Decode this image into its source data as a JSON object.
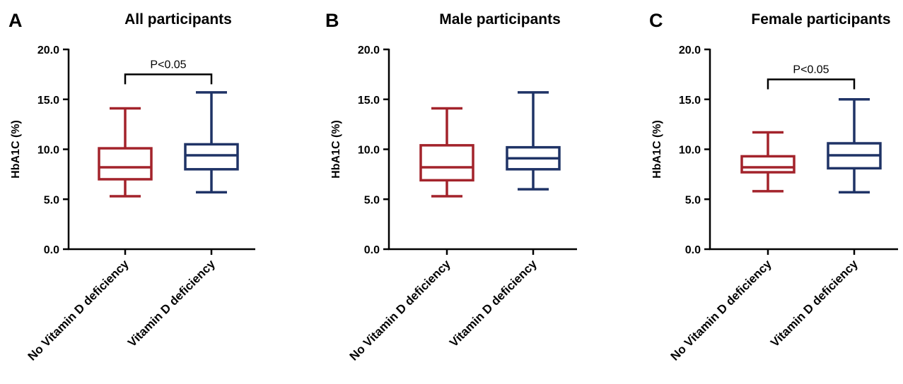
{
  "chart_data": [
    {
      "panel": "A",
      "type": "boxplot",
      "title": "All participants",
      "ylabel": "HbA1C (%)",
      "xlabel": "",
      "ylim": [
        0,
        20
      ],
      "yticks": [
        "0.0",
        "5.0",
        "10.0",
        "15.0",
        "20.0"
      ],
      "categories": [
        "No Vitamin D deficiency",
        "Vitamin D deficiency"
      ],
      "boxes": [
        {
          "min": 5.3,
          "q1": 7.0,
          "median": 8.2,
          "q3": 10.1,
          "max": 14.1,
          "color": "#a3232b"
        },
        {
          "min": 5.7,
          "q1": 8.0,
          "median": 9.4,
          "q3": 10.5,
          "max": 15.7,
          "color": "#1f3366"
        }
      ],
      "significance": {
        "text": "P<0.05",
        "y": 17.5
      }
    },
    {
      "panel": "B",
      "type": "boxplot",
      "title": "Male participants",
      "ylabel": "HbA1C (%)",
      "xlabel": "",
      "ylim": [
        0,
        20
      ],
      "yticks": [
        "0.0",
        "5.0",
        "10.0",
        "15.0",
        "20.0"
      ],
      "categories": [
        "No Vitamin D deficiency",
        "Vitamin D deficiency"
      ],
      "boxes": [
        {
          "min": 5.3,
          "q1": 6.9,
          "median": 8.2,
          "q3": 10.4,
          "max": 14.1,
          "color": "#a3232b"
        },
        {
          "min": 6.0,
          "q1": 8.0,
          "median": 9.1,
          "q3": 10.2,
          "max": 15.7,
          "color": "#1f3366"
        }
      ],
      "significance": null
    },
    {
      "panel": "C",
      "type": "boxplot",
      "title": "Female participants",
      "ylabel": "HbA1C (%)",
      "xlabel": "",
      "ylim": [
        0,
        20
      ],
      "yticks": [
        "0.0",
        "5.0",
        "10.0",
        "15.0",
        "20.0"
      ],
      "categories": [
        "No Vitamin D deficiency",
        "Vitamin D deficiency"
      ],
      "boxes": [
        {
          "min": 5.8,
          "q1": 7.7,
          "median": 8.2,
          "q3": 9.3,
          "max": 11.7,
          "color": "#a3232b"
        },
        {
          "min": 5.7,
          "q1": 8.1,
          "median": 9.4,
          "q3": 10.6,
          "max": 15.0,
          "color": "#1f3366"
        }
      ],
      "significance": {
        "text": "P<0.05",
        "y": 17.0
      }
    }
  ]
}
